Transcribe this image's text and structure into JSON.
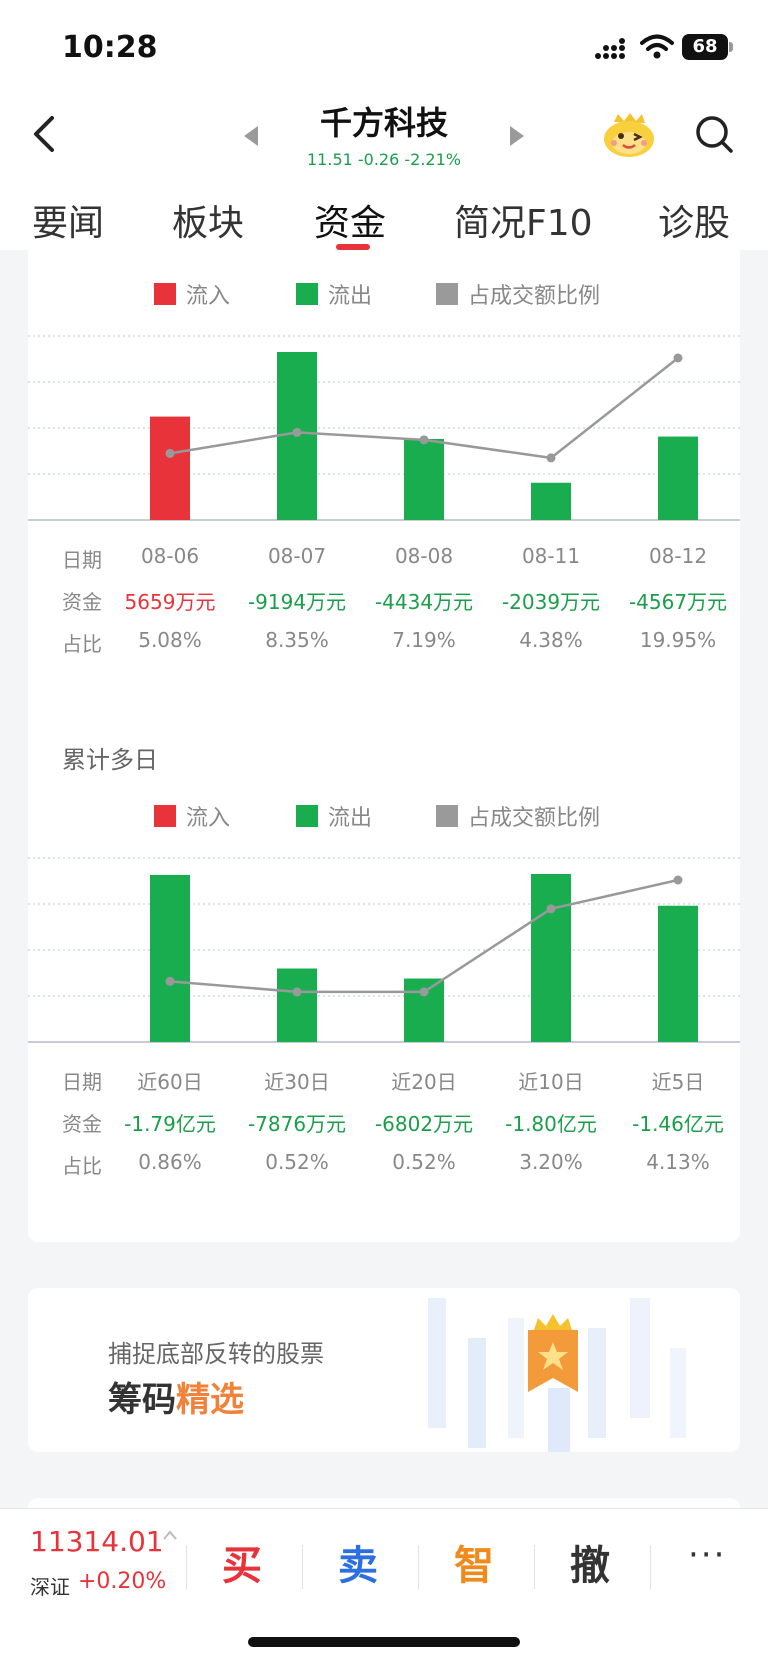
{
  "status_bar": {
    "time": "10:28",
    "battery": "68"
  },
  "header": {
    "stock_name": "千方科技",
    "quote": "11.51 -0.26 -2.21%"
  },
  "tabs": [
    "要闻",
    "板块",
    "资金",
    "简况F10",
    "诊股"
  ],
  "active_tab": "资金",
  "legend": {
    "inflow": "流入",
    "outflow": "流出",
    "ratio": "占成交额比例"
  },
  "colors": {
    "inflow": "#e8333a",
    "outflow": "#1aad50",
    "ratio": "#999999"
  },
  "row_labels": {
    "date": "日期",
    "fund": "资金",
    "ratio": "占比"
  },
  "daily": {
    "dates": [
      "08-06",
      "08-07",
      "08-08",
      "08-11",
      "08-12"
    ],
    "funds": [
      "5659万元",
      "-9194万元",
      "-4434万元",
      "-2039万元",
      "-4567万元"
    ],
    "ratios": [
      "5.08%",
      "8.35%",
      "7.19%",
      "4.38%",
      "19.95%"
    ]
  },
  "cumulative": {
    "title": "累计多日",
    "periods": [
      "近60日",
      "近30日",
      "近20日",
      "近10日",
      "近5日"
    ],
    "funds": [
      "-1.79亿元",
      "-7876万元",
      "-6802万元",
      "-1.80亿元",
      "-1.46亿元"
    ],
    "ratios": [
      "0.86%",
      "0.52%",
      "0.52%",
      "3.20%",
      "4.13%"
    ]
  },
  "chart_data": [
    {
      "type": "bar",
      "categories": [
        "08-06",
        "08-07",
        "08-08",
        "08-11",
        "08-12"
      ],
      "series": [
        {
          "name": "资金(万元)",
          "values": [
            5659,
            -9194,
            -4434,
            -2039,
            -4567
          ]
        },
        {
          "name": "占成交额比例(%)",
          "values": [
            5.08,
            8.35,
            7.19,
            4.38,
            19.95
          ]
        }
      ]
    },
    {
      "type": "bar",
      "categories": [
        "近60日",
        "近30日",
        "近20日",
        "近10日",
        "近5日"
      ],
      "series": [
        {
          "name": "资金(万元)",
          "values": [
            -17900,
            -7876,
            -6802,
            -18000,
            -14600
          ]
        },
        {
          "name": "占成交额比例(%)",
          "values": [
            0.86,
            0.52,
            0.52,
            3.2,
            4.13
          ]
        }
      ]
    }
  ],
  "promo": {
    "subtitle": "捕捉底部反转的股票",
    "title_a": "筹码",
    "title_b": "精选"
  },
  "bottom_bar": {
    "index_value": "11314.01",
    "index_name": "深证",
    "index_change": "+0.20%",
    "buy": "买",
    "sell": "卖",
    "smart": "智",
    "cancel": "撤",
    "more": "···"
  }
}
